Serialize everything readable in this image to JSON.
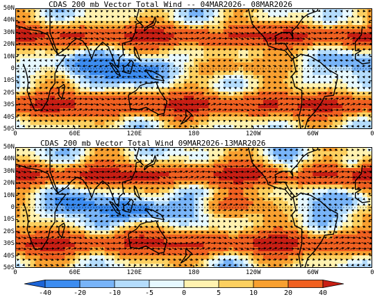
{
  "panels": [
    {
      "title": "CDAS 200 mb Vector Total Wind -- 04MAR2026- 08MAR2026"
    },
    {
      "title": "CDAS 200 mb Vector Total Wind 09MAR2026-13MAR2026"
    }
  ],
  "lat_labels": [
    "50N",
    "40N",
    "30N",
    "20N",
    "10N",
    "0",
    "10S",
    "20S",
    "30S",
    "40S",
    "50S"
  ],
  "lon_labels": [
    "0",
    "60E",
    "120E",
    "180",
    "120W",
    "60W",
    "0"
  ],
  "colorbar": {
    "labels": [
      "-40",
      "-20",
      "-10",
      "-5",
      "0",
      "5",
      "10",
      "20",
      "40"
    ],
    "colors": [
      "#1c64d6",
      "#3c8cf0",
      "#78b4f8",
      "#b4dcfc",
      "#e6f8ff",
      "#fff2b0",
      "#fcd060",
      "#f8a030",
      "#f06020",
      "#c81e14"
    ]
  }
}
